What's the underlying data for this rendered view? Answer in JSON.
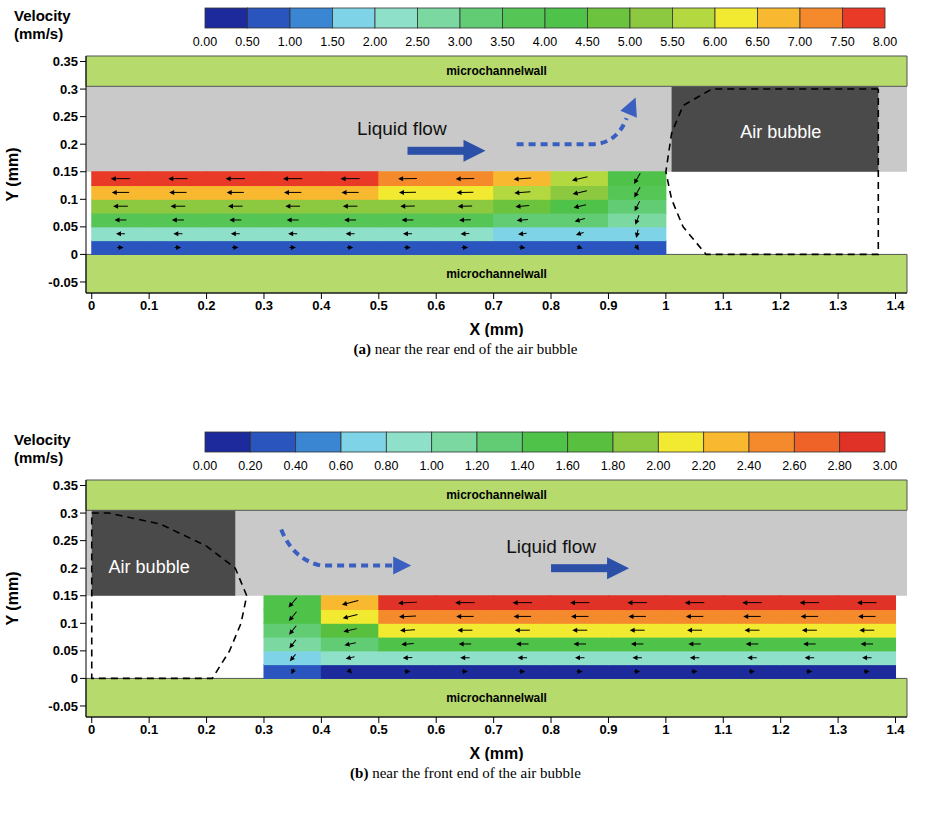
{
  "chart_data": [
    {
      "type": "vector_field",
      "caption": "(a) near the rear end of the air bubble",
      "xlabel": "X (mm)",
      "ylabel": "Y (mm)",
      "xlim": [
        -0.01,
        1.42
      ],
      "ylim": [
        -0.07,
        0.36
      ],
      "xticks": [
        0,
        0.1,
        0.2,
        0.3,
        0.4,
        0.5,
        0.6,
        0.7,
        0.8,
        0.9,
        1,
        1.1,
        1.2,
        1.3,
        1.4
      ],
      "yticks": [
        -0.05,
        0,
        0.05,
        0.1,
        0.15,
        0.2,
        0.25,
        0.3,
        0.35
      ],
      "colorbar": {
        "title": "Velocity (mm/s)",
        "range": [
          0,
          8
        ],
        "ticks": [
          {
            "value": 0,
            "label": "0.00"
          },
          {
            "value": 0.5,
            "label": "0.50"
          },
          {
            "value": 1,
            "label": "1.00"
          },
          {
            "value": 1.5,
            "label": "1.50"
          },
          {
            "value": 2,
            "label": "2.00"
          },
          {
            "value": 2.5,
            "label": "2.50"
          },
          {
            "value": 3,
            "label": "3.00"
          },
          {
            "value": 3.5,
            "label": "3.50"
          },
          {
            "value": 4,
            "label": "4.00"
          },
          {
            "value": 4.5,
            "label": "4.50"
          },
          {
            "value": 5,
            "label": "5.00"
          },
          {
            "value": 5.5,
            "label": "5.50"
          },
          {
            "value": 6,
            "label": "6.00"
          },
          {
            "value": 6.5,
            "label": "6.50"
          },
          {
            "value": 7,
            "label": "7.00"
          },
          {
            "value": 7.5,
            "label": "7.50"
          },
          {
            "value": 8,
            "label": "8.00"
          }
        ],
        "colors": [
          "#1c2a9c",
          "#2a55be",
          "#3a86d2",
          "#7fd3e6",
          "#8fe0c8",
          "#7ad8a0",
          "#62cc74",
          "#55c655",
          "#4fc24a",
          "#6cc43e",
          "#8cc840",
          "#b4d840",
          "#f2ea30",
          "#f8b830",
          "#f58a2c",
          "#e83a26"
        ]
      },
      "field": {
        "x": [
          0.05,
          0.15,
          0.25,
          0.35,
          0.45,
          0.55,
          0.65,
          0.75,
          0.85,
          0.95
        ],
        "y": [
          0.0125,
          0.0375,
          0.0625,
          0.0875,
          0.1125,
          0.1375
        ],
        "u": [
          [
            0.7,
            0.8,
            0.7,
            0.8,
            0.7,
            0.8,
            0.7,
            0.7,
            0.6,
            0.4
          ],
          [
            -2.1,
            -2.2,
            -2.1,
            -2.2,
            -2.1,
            -2.2,
            -2.0,
            -1.9,
            -1.6,
            -0.4
          ],
          [
            -3.7,
            -3.8,
            -3.7,
            -3.8,
            -3.7,
            -3.7,
            -3.6,
            -3.4,
            -2.9,
            -1.0
          ],
          [
            -5.2,
            -5.2,
            -5.1,
            -5.2,
            -5.1,
            -5.1,
            -5.0,
            -4.7,
            -4.0,
            -1.5
          ],
          [
            -6.6,
            -6.6,
            -6.5,
            -6.6,
            -6.5,
            -6.4,
            -6.3,
            -5.9,
            -5.0,
            -1.8
          ],
          [
            -7.7,
            -7.6,
            -7.6,
            -7.6,
            -7.5,
            -7.4,
            -7.2,
            -6.7,
            -5.7,
            -2.0
          ]
        ],
        "v": [
          [
            0,
            0,
            0,
            0,
            0,
            0,
            0,
            -0.1,
            -0.2,
            -0.6
          ],
          [
            0,
            0,
            0,
            0,
            0,
            0,
            -0.1,
            -0.2,
            -0.5,
            -1.8
          ],
          [
            0,
            0,
            0,
            0,
            0,
            0,
            -0.1,
            -0.3,
            -0.8,
            -2.6
          ],
          [
            0,
            0,
            0,
            0,
            0,
            -0.1,
            -0.2,
            -0.4,
            -1.0,
            -3.0
          ],
          [
            0,
            0,
            0,
            0,
            0,
            -0.1,
            -0.2,
            -0.5,
            -1.2,
            -3.2
          ],
          [
            0,
            0,
            0,
            0,
            0,
            -0.1,
            -0.2,
            -0.5,
            -1.3,
            -3.5
          ]
        ]
      },
      "walls": [
        {
          "label": "microchannelwall",
          "y": [
            0.305,
            0.36
          ]
        },
        {
          "label": "microchannelwall",
          "y": [
            -0.07,
            0
          ]
        }
      ],
      "bubble_outline": {
        "x": [
          1.37,
          1.08,
          1.03,
          1.01,
          1.0,
          1.01,
          1.03,
          1.07,
          1.37,
          1.37
        ],
        "y": [
          0.3,
          0.3,
          0.27,
          0.22,
          0.15,
          0.1,
          0.05,
          0.0,
          0.0,
          0.3
        ]
      },
      "flow_label": "Liquid flow",
      "bubble_label": "Air bubble"
    },
    {
      "type": "vector_field",
      "caption": "(b) near the front end of the air bubble",
      "xlabel": "X (mm)",
      "ylabel": "Y (mm)",
      "xlim": [
        -0.01,
        1.42
      ],
      "ylim": [
        -0.07,
        0.36
      ],
      "xticks": [
        0,
        0.1,
        0.2,
        0.3,
        0.4,
        0.5,
        0.6,
        0.7,
        0.8,
        0.9,
        1,
        1.1,
        1.2,
        1.3,
        1.4
      ],
      "yticks": [
        -0.05,
        0,
        0.05,
        0.1,
        0.15,
        0.2,
        0.25,
        0.3,
        0.35
      ],
      "colorbar": {
        "title": "Velocity (mm/s)",
        "range": [
          0,
          3
        ],
        "ticks": [
          {
            "value": 0,
            "label": "0.00"
          },
          {
            "value": 0.2,
            "label": "0.20"
          },
          {
            "value": 0.4,
            "label": "0.40"
          },
          {
            "value": 0.6,
            "label": "0.60"
          },
          {
            "value": 0.8,
            "label": "0.80"
          },
          {
            "value": 1,
            "label": "1.00"
          },
          {
            "value": 1.2,
            "label": "1.20"
          },
          {
            "value": 1.4,
            "label": "1.40"
          },
          {
            "value": 1.6,
            "label": "1.60"
          },
          {
            "value": 1.8,
            "label": "1.80"
          },
          {
            "value": 2,
            "label": "2.00"
          },
          {
            "value": 2.2,
            "label": "2.20"
          },
          {
            "value": 2.4,
            "label": "2.40"
          },
          {
            "value": 2.6,
            "label": "2.60"
          },
          {
            "value": 2.8,
            "label": "2.80"
          },
          {
            "value": 3,
            "label": "3.00"
          }
        ],
        "colors": [
          "#1c2a9c",
          "#2a55be",
          "#3a86d2",
          "#7fd3e6",
          "#8fe0c8",
          "#7ad8a0",
          "#62cc74",
          "#4fc24a",
          "#58c03e",
          "#8cc840",
          "#f2ea30",
          "#f8b830",
          "#f58a2c",
          "#ef6228",
          "#e03226"
        ]
      },
      "field": {
        "x": [
          0.35,
          0.45,
          0.55,
          0.65,
          0.75,
          0.85,
          0.95,
          1.05,
          1.15,
          1.25,
          1.35
        ],
        "y": [
          0.0125,
          0.0375,
          0.0625,
          0.0875,
          0.1125,
          0.1375
        ],
        "u": [
          [
            -0.1,
            0.05,
            0.15,
            0.15,
            0.15,
            0.15,
            0.15,
            0.15,
            0.15,
            0.15,
            0.15
          ],
          [
            -0.5,
            -0.8,
            -0.9,
            -0.9,
            -0.9,
            -0.9,
            -0.9,
            -0.9,
            -0.9,
            -0.9,
            -0.9
          ],
          [
            -0.7,
            -1.3,
            -1.5,
            -1.5,
            -1.5,
            -1.5,
            -1.5,
            -1.5,
            -1.5,
            -1.5,
            -1.5
          ],
          [
            -0.8,
            -1.7,
            -2.0,
            -2.0,
            -2.0,
            -2.0,
            -2.0,
            -2.0,
            -2.0,
            -2.0,
            -2.0
          ],
          [
            -0.9,
            -2.0,
            -2.4,
            -2.5,
            -2.5,
            -2.5,
            -2.5,
            -2.5,
            -2.5,
            -2.5,
            -2.5
          ],
          [
            -1.0,
            -2.3,
            -2.8,
            -2.9,
            -2.9,
            -2.9,
            -2.9,
            -2.9,
            -2.9,
            -2.9,
            -2.9
          ]
        ],
        "v": [
          [
            -0.2,
            -0.05,
            0,
            0,
            0,
            0,
            0,
            0,
            0,
            0,
            0
          ],
          [
            -0.6,
            -0.2,
            -0.05,
            0,
            0,
            0,
            0,
            0,
            0,
            0,
            0
          ],
          [
            -0.9,
            -0.3,
            -0.1,
            0,
            0,
            0,
            0,
            0,
            0,
            0,
            0
          ],
          [
            -1.0,
            -0.4,
            -0.1,
            0,
            0,
            0,
            0,
            0,
            0,
            0,
            0
          ],
          [
            -1.1,
            -0.5,
            -0.1,
            0,
            0,
            0,
            0,
            0,
            0,
            0,
            0
          ],
          [
            -1.2,
            -0.6,
            -0.15,
            0,
            0,
            0,
            0,
            0,
            0,
            0,
            0
          ]
        ]
      },
      "walls": [
        {
          "label": "microchannelwall",
          "y": [
            0.305,
            0.36
          ]
        },
        {
          "label": "microchannelwall",
          "y": [
            -0.07,
            0
          ]
        }
      ],
      "bubble_outline": {
        "x": [
          0.0,
          0.03,
          0.12,
          0.2,
          0.25,
          0.27,
          0.26,
          0.24,
          0.21,
          0.0,
          0.0
        ],
        "y": [
          0.3,
          0.3,
          0.28,
          0.24,
          0.2,
          0.15,
          0.1,
          0.05,
          0.0,
          0.0,
          0.3
        ]
      },
      "flow_label": "Liquid flow",
      "bubble_label": "Air bubble"
    }
  ]
}
